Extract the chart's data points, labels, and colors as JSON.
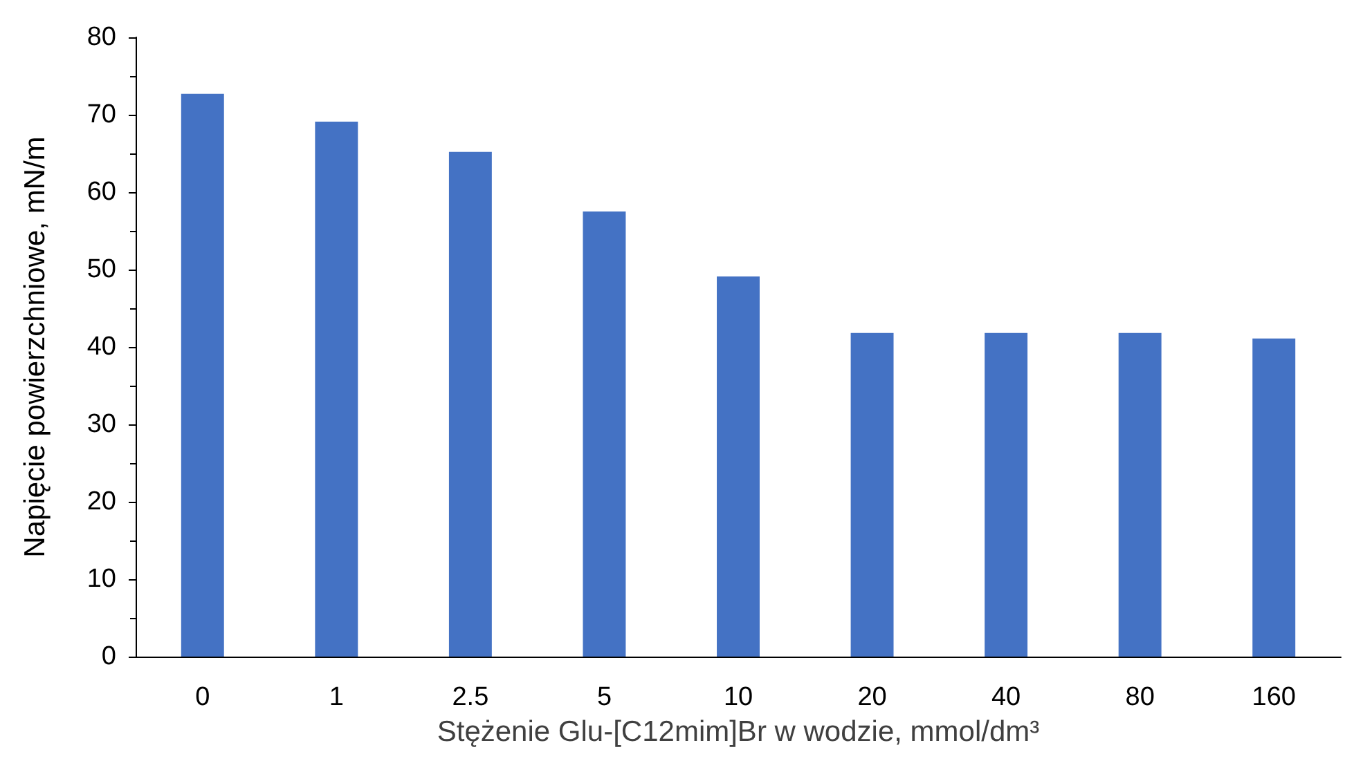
{
  "chart_data": {
    "type": "bar",
    "xlabel": "Stężenie Glu-[C12mim]Br w wodzie, mmol/dm³",
    "ylabel": "Napięcie powierzchniowe, mN/m",
    "categories": [
      "0",
      "1",
      "2.5",
      "5",
      "10",
      "20",
      "40",
      "80",
      "160"
    ],
    "values": [
      72.7,
      69.1,
      65.2,
      57.5,
      49.1,
      41.8,
      41.8,
      41.8,
      41.1
    ],
    "color": "#4472c4",
    "ylim": [
      0,
      80
    ],
    "yticks": [
      0,
      10,
      20,
      30,
      40,
      50,
      60,
      70,
      80
    ],
    "grid": false
  }
}
